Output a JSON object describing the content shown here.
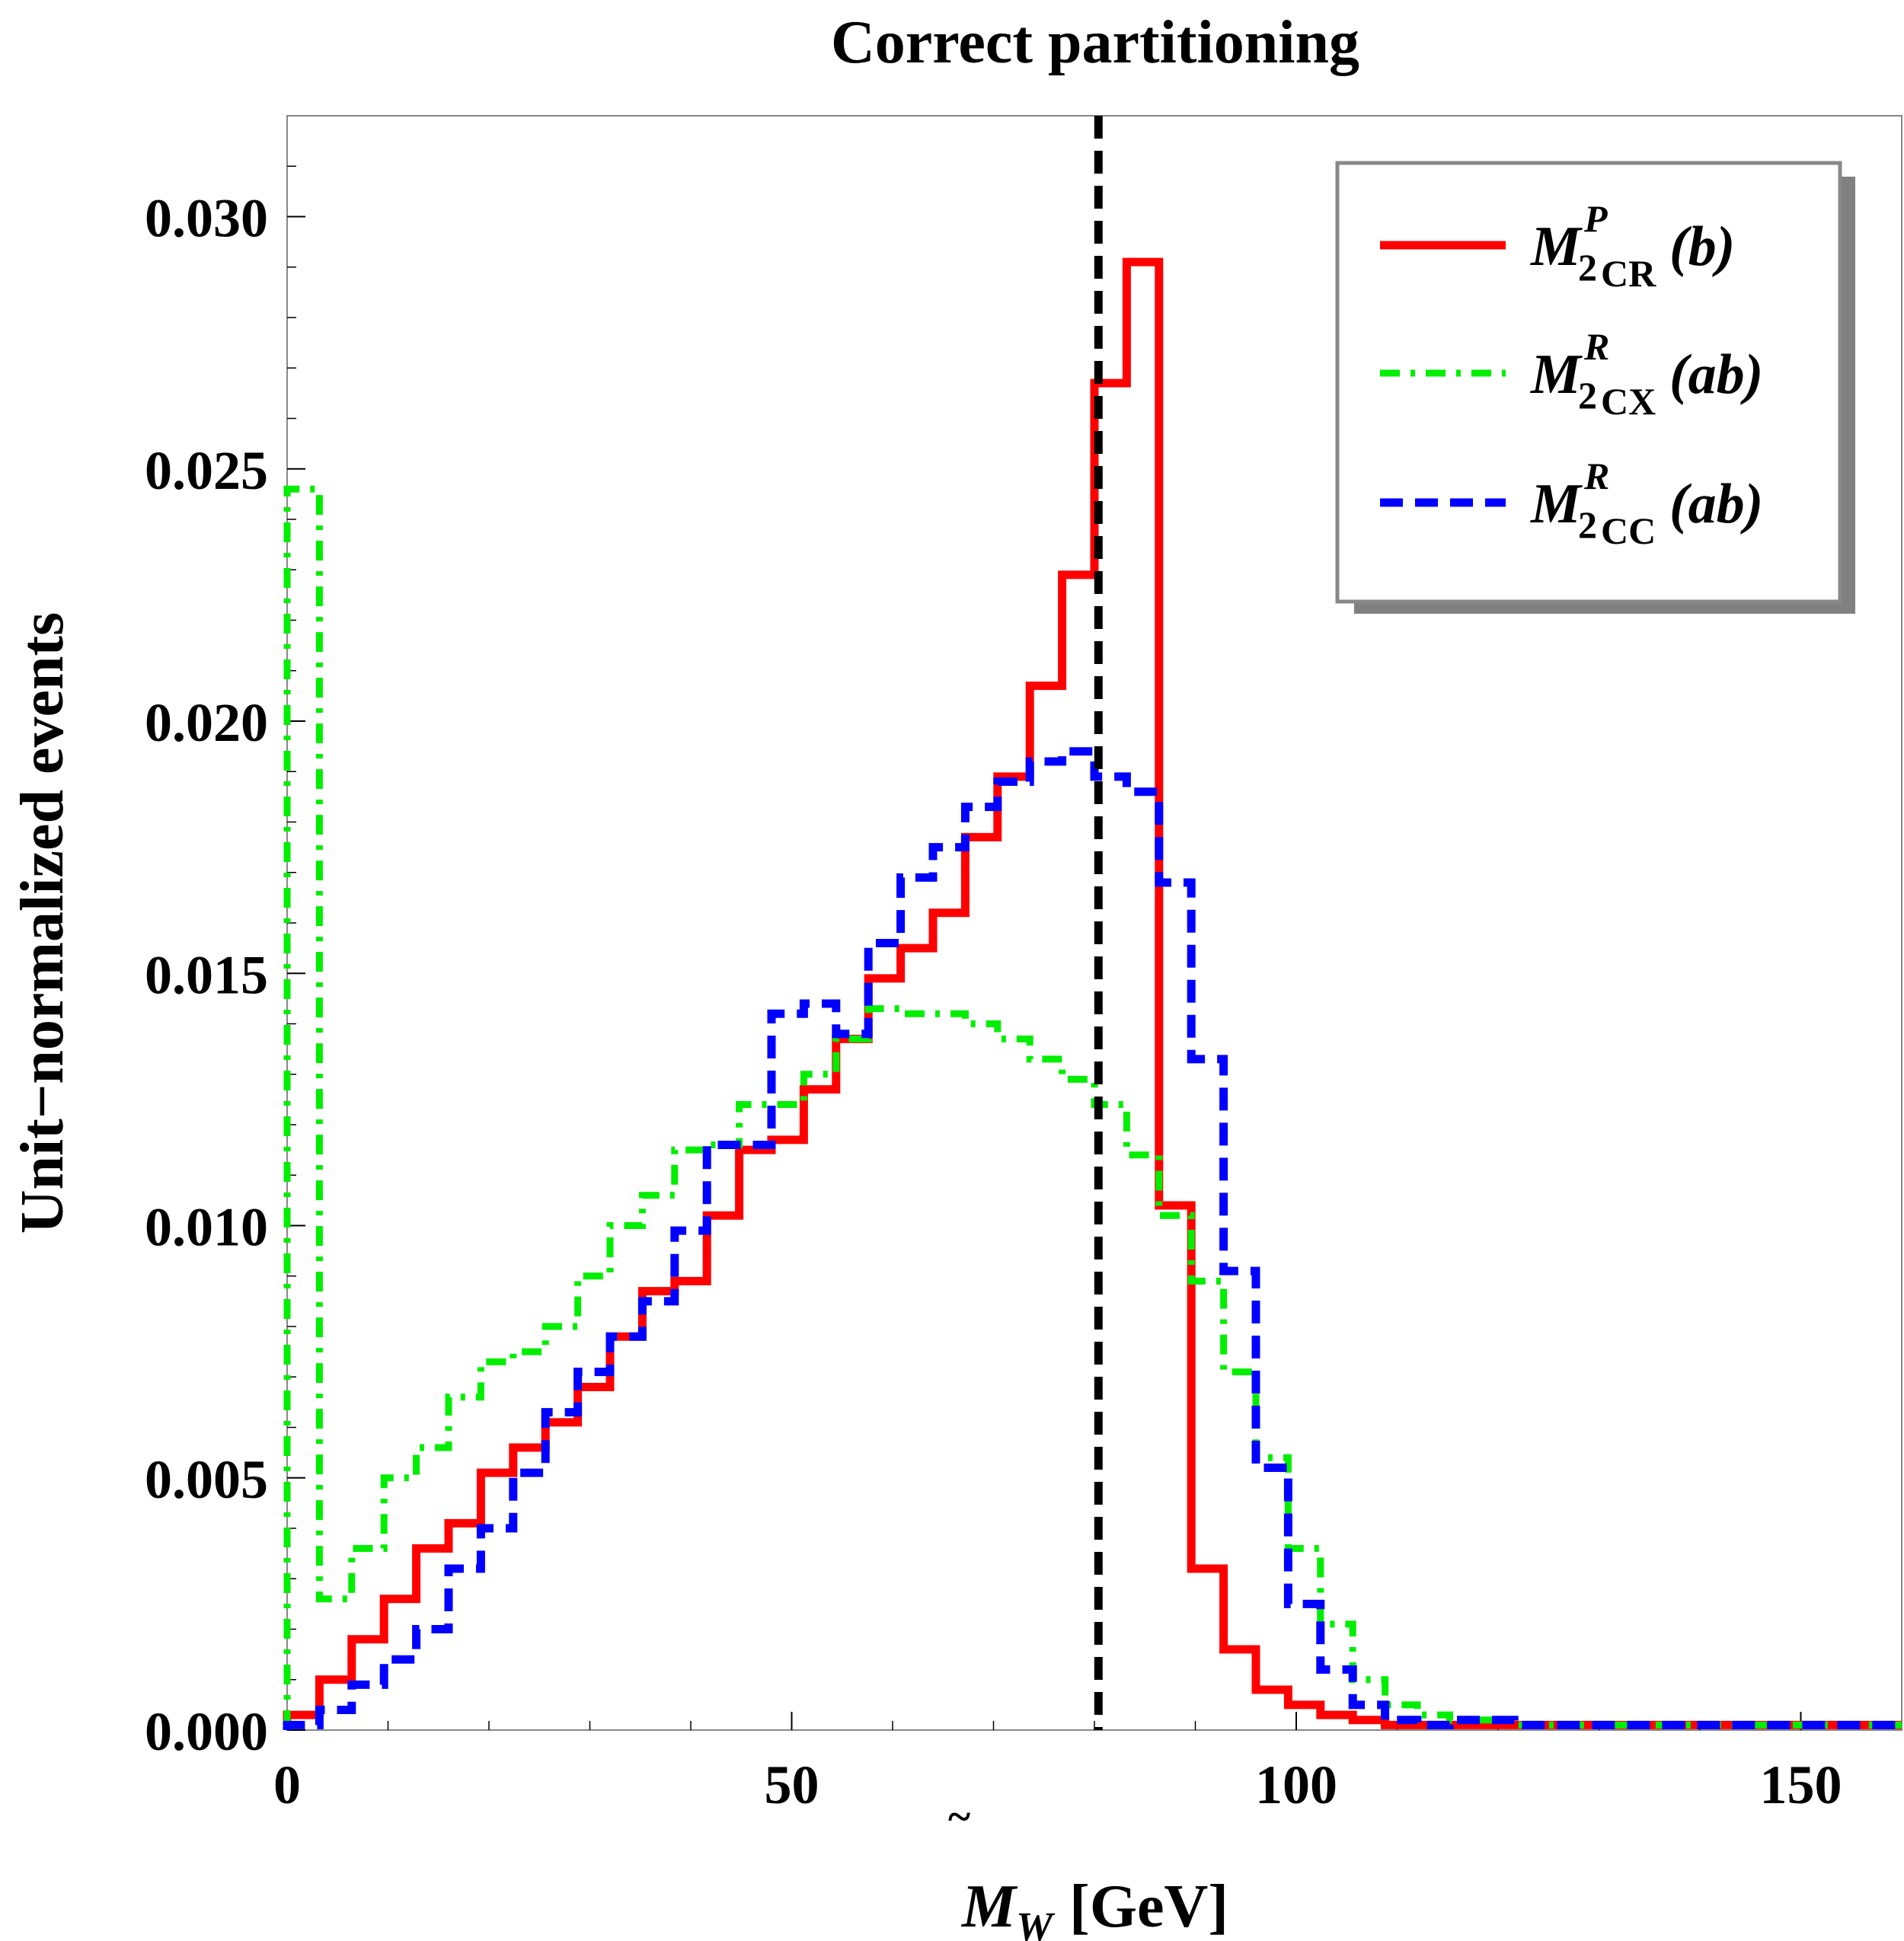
{
  "chart_data": {
    "type": "line",
    "title": "Correct partitioning",
    "xlabel": {
      "base": "M",
      "sub": "W",
      "unit": "[GeV]"
    },
    "ylabel": "Unit−normalized events",
    "xlim": [
      0,
      160
    ],
    "ylim": [
      0,
      0.032
    ],
    "x_ticks": [
      0,
      50,
      100,
      150
    ],
    "x_tick_labels": [
      "0",
      "50",
      "100",
      "150"
    ],
    "y_ticks": [
      0,
      0.005,
      0.01,
      0.015,
      0.02,
      0.025,
      0.03
    ],
    "y_tick_labels": [
      "0.000",
      "0.005",
      "0.010",
      "0.015",
      "0.020",
      "0.025",
      "0.030"
    ],
    "grid": false,
    "legend_position": "top-right",
    "bin_edges": [
      0,
      3.2,
      6.4,
      9.6,
      12.8,
      16,
      19.2,
      22.4,
      25.6,
      28.8,
      32,
      35.2,
      38.4,
      41.6,
      44.8,
      48,
      51.2,
      54.4,
      57.6,
      60.8,
      64,
      67.2,
      70.4,
      73.6,
      76.8,
      80,
      83.2,
      86.4,
      89.6,
      92.8,
      96,
      99.2,
      102.4,
      105.6,
      108.8,
      112,
      115.2,
      118.4,
      121.6,
      124.8,
      128,
      131.2,
      134.4,
      137.6,
      140.8,
      144,
      147.2,
      150.4,
      153.6,
      156.8,
      160
    ],
    "reference_line": {
      "x": 80.4,
      "style": "dashed",
      "color": "#000000"
    },
    "series": [
      {
        "name": "M2CR P (b)",
        "legend": {
          "base": "M",
          "sup": "P",
          "sub": "2",
          "subsub": "CR",
          "arg": "(b)"
        },
        "color": "#ff0000",
        "style": "solid",
        "values": [
          0.0003,
          0.001,
          0.0018,
          0.0026,
          0.0036,
          0.0041,
          0.0051,
          0.0056,
          0.0061,
          0.0068,
          0.0078,
          0.0087,
          0.0089,
          0.0102,
          0.0115,
          0.0117,
          0.0127,
          0.0137,
          0.0149,
          0.0155,
          0.0162,
          0.0177,
          0.0189,
          0.0207,
          0.0229,
          0.0267,
          0.0291,
          0.0104,
          0.0032,
          0.0016,
          0.0008,
          0.0005,
          0.0003,
          0.0002,
          0.0001,
          0.0001,
          0.0001,
          0.0001,
          0.0001,
          0.0001,
          0.0001,
          0.0001,
          0.0001,
          0.0001,
          0.0001,
          0.0001,
          0.0001,
          0.0001,
          0.0001,
          0.0001
        ]
      },
      {
        "name": "M2CX R (ab)",
        "legend": {
          "base": "M",
          "sup": "R",
          "sub": "2",
          "subsub": "CX",
          "arg": "(ab)"
        },
        "color": "#00ee00",
        "style": "dash-dot",
        "values": [
          0.0246,
          0.0026,
          0.0036,
          0.005,
          0.0056,
          0.0066,
          0.0073,
          0.0075,
          0.008,
          0.009,
          0.01,
          0.0106,
          0.0115,
          0.0116,
          0.0124,
          0.0124,
          0.013,
          0.0137,
          0.0143,
          0.0142,
          0.0142,
          0.014,
          0.0137,
          0.0133,
          0.0129,
          0.0124,
          0.0114,
          0.0102,
          0.0089,
          0.0071,
          0.0054,
          0.0036,
          0.0021,
          0.001,
          0.0005,
          0.0003,
          0.0002,
          0.0002,
          0.0001,
          0.0001,
          0.0001,
          0.0001,
          0.0001,
          0.0001,
          0.0001,
          0.0001,
          0.0001,
          0.0001,
          0.0001,
          0.0001
        ]
      },
      {
        "name": "M2CC R (ab)",
        "legend": {
          "base": "M",
          "sup": "R",
          "sub": "2",
          "subsub": "CC",
          "arg": "(ab)"
        },
        "color": "#0000ff",
        "style": "dashed",
        "values": [
          0.0001,
          0.0004,
          0.0009,
          0.0014,
          0.002,
          0.0032,
          0.004,
          0.0051,
          0.0063,
          0.0071,
          0.0078,
          0.0085,
          0.0099,
          0.0116,
          0.0116,
          0.0142,
          0.0144,
          0.0138,
          0.0156,
          0.0169,
          0.0175,
          0.0183,
          0.0188,
          0.0192,
          0.0194,
          0.0189,
          0.0186,
          0.0168,
          0.0133,
          0.0091,
          0.0052,
          0.0025,
          0.0012,
          0.0005,
          0.0002,
          0.0001,
          0.0002,
          0.0002,
          0.0001,
          0.0001,
          0.0001,
          0.0001,
          0.0001,
          0.0001,
          0.0001,
          0.0001,
          0.0001,
          0.0001,
          0.0001,
          0.0001
        ]
      }
    ]
  }
}
